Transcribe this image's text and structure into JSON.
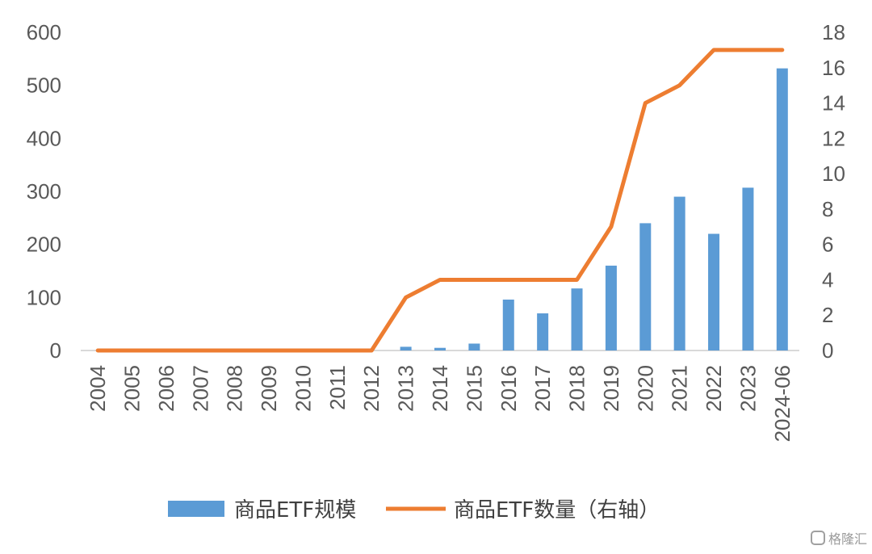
{
  "chart_data": {
    "type": "bar+line",
    "categories": [
      "2004",
      "2005",
      "2006",
      "2007",
      "2008",
      "2009",
      "2010",
      "2011",
      "2012",
      "2013",
      "2014",
      "2015",
      "2016",
      "2017",
      "2018",
      "2019",
      "2020",
      "2021",
      "2022",
      "2023",
      "2024-06"
    ],
    "series": [
      {
        "name": "商品ETF规模",
        "type": "bar",
        "axis": "left",
        "color": "#5B9BD5",
        "values": [
          0,
          0,
          0,
          0,
          0,
          0,
          0,
          0,
          0,
          7,
          5,
          13,
          96,
          70,
          117,
          160,
          240,
          290,
          220,
          307,
          532
        ]
      },
      {
        "name": "商品ETF数量（右轴）",
        "type": "line",
        "axis": "right",
        "color": "#ED7D31",
        "values": [
          0,
          0,
          0,
          0,
          0,
          0,
          0,
          0,
          0,
          3,
          4,
          4,
          4,
          4,
          4,
          7,
          14,
          15,
          17,
          17,
          17
        ]
      }
    ],
    "y_left": {
      "min": 0,
      "max": 600,
      "ticks": [
        0,
        100,
        200,
        300,
        400,
        500,
        600
      ]
    },
    "y_right": {
      "min": 0,
      "max": 18,
      "ticks": [
        0,
        2,
        4,
        6,
        8,
        10,
        12,
        14,
        16,
        18
      ]
    },
    "legend_position": "bottom",
    "grid": false
  },
  "watermark": "格隆汇"
}
